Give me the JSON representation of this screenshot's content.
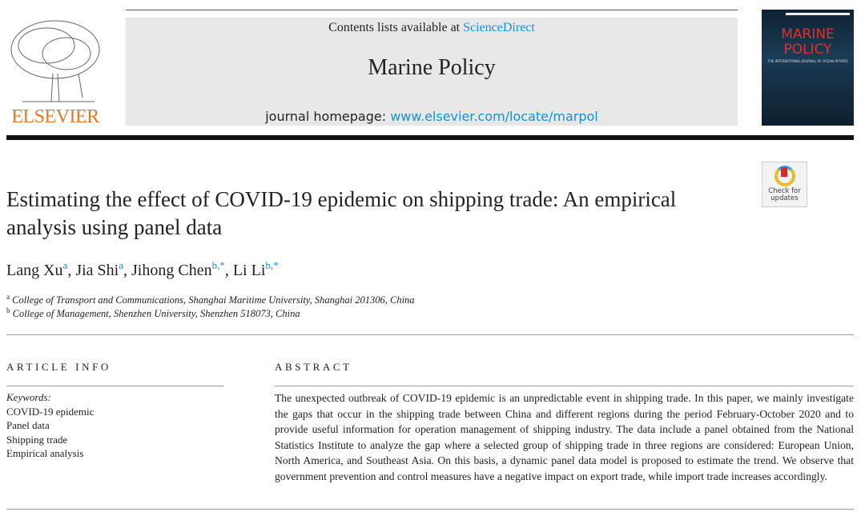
{
  "header": {
    "contents_prefix": "Contents lists available at ",
    "contents_link": "ScienceDirect",
    "journal": "Marine Policy",
    "homepage_prefix": "journal homepage: ",
    "homepage_link": "www.elsevier.com/locate/marpol"
  },
  "publisher_logo": "ELSEVIER",
  "cover": {
    "title": "MARINE POLICY",
    "subtitle": "THE INTERNATIONAL JOURNAL OF OCEAN AFFAIRS"
  },
  "check_updates": "Check for updates",
  "title": "Estimating the effect of COVID-19 epidemic on shipping trade: An empirical analysis using panel data",
  "authors": [
    {
      "name": "Lang Xu",
      "sup": "a"
    },
    {
      "name": "Jia Shi",
      "sup": "a"
    },
    {
      "name": "Jihong Chen",
      "sup": "b,*"
    },
    {
      "name": "Li Li",
      "sup": "b,*"
    }
  ],
  "affiliations": [
    {
      "sup": "a",
      "text": "College of Transport and Communications, Shanghai Maritime University, Shanghai 201306, China"
    },
    {
      "sup": "b",
      "text": "College of Management, Shenzhen University, Shenzhen 518073, China"
    }
  ],
  "article_info": {
    "heading": "ARTICLE INFO",
    "keywords_label": "Keywords:",
    "keywords": [
      "COVID-19 epidemic",
      "Panel data",
      "Shipping trade",
      "Empirical analysis"
    ]
  },
  "abstract": {
    "heading": "ABSTRACT",
    "text": "The unexpected outbreak of COVID-19 epidemic is an unpredictable event in shipping trade. In this paper, we mainly investigate the gaps that occur in the shipping trade between China and different regions during the period February-October 2020 and to provide useful information for operation management of shipping industry. The data include a panel obtained from the National Statistics Institute to analyze the gap where a selected group of shipping trade in three regions are considered: European Union, North America, and Southeast Asia. On this basis, a dynamic panel data model is proposed to estimate the trend. We observe that government prevention and control measures have a negative impact on export trade, while import trade increases accordingly."
  }
}
